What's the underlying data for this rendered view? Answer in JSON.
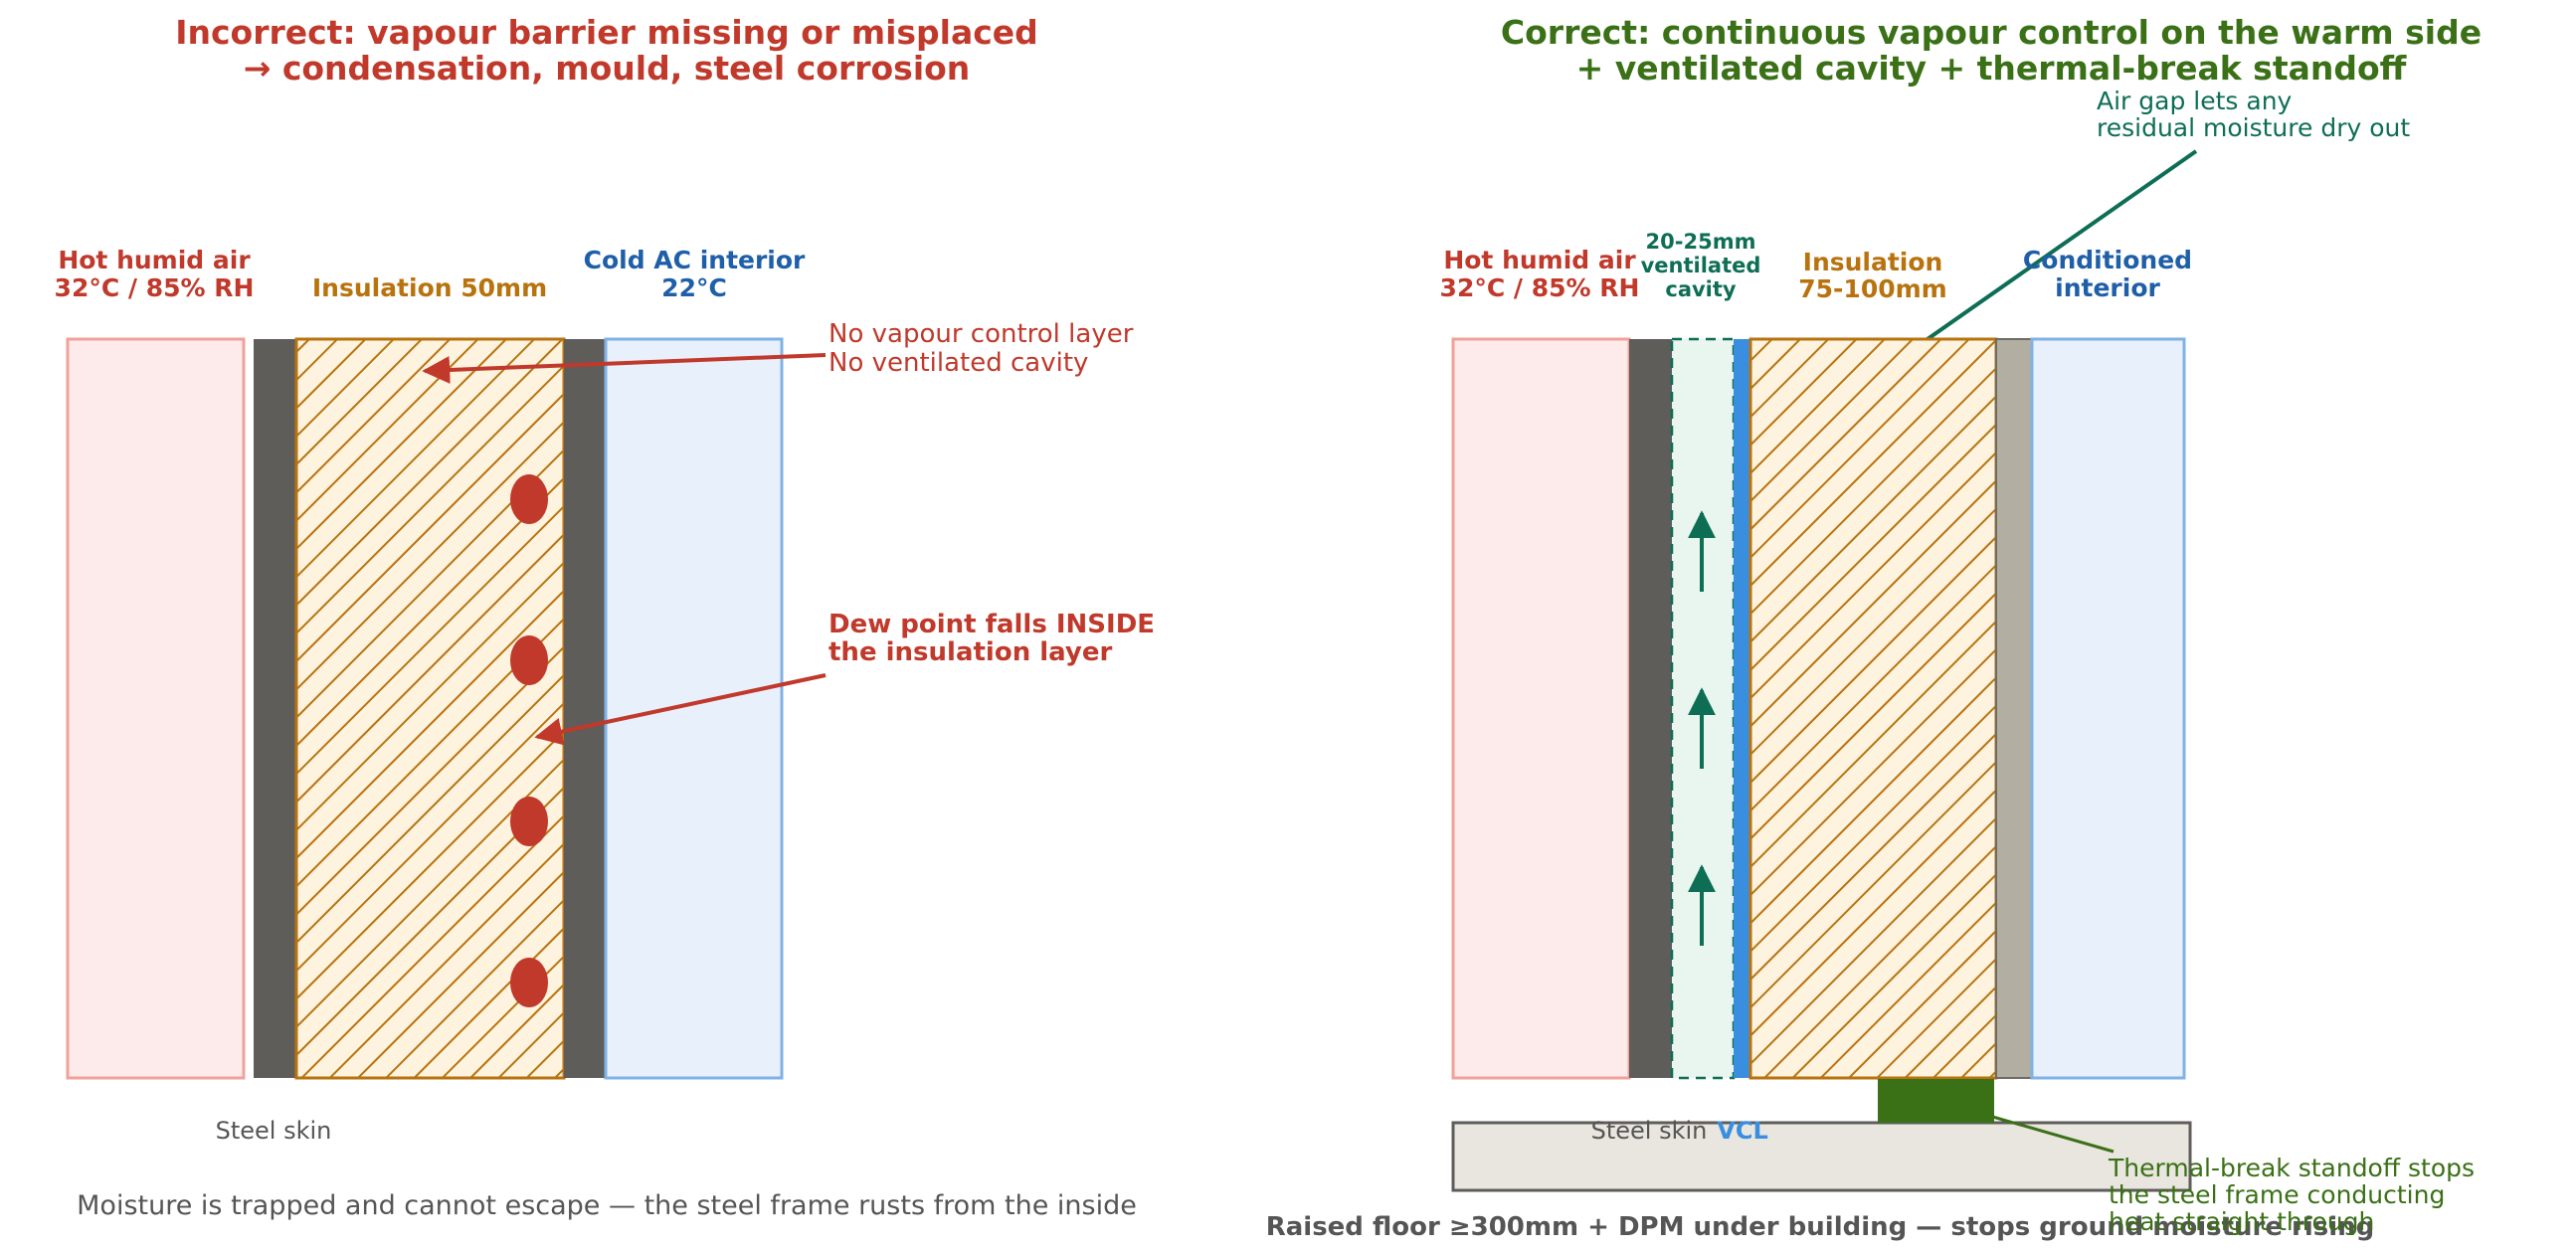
{
  "left_panel": {
    "title_line1": "Incorrect: vapour barrier missing or misplaced",
    "title_line2": "→ condensation, mould, steel corrosion",
    "exterior_label_line1": "Hot humid air",
    "exterior_label_line2": "32°C / 85% RH",
    "insulation_label": "Insulation 50mm",
    "interior_label_line1": "Cold AC interior",
    "interior_label_line2": "22°C",
    "callout_no_layers_line1": "No vapour control layer",
    "callout_no_layers_line2": "No ventilated cavity",
    "callout_dew_line1": "Dew point falls INSIDE",
    "callout_dew_line2": "the insulation layer",
    "steel_skin_label": "Steel skin",
    "footer": "Moisture is trapped and cannot escape — the steel frame rusts from the inside",
    "condensation_droplet_count": 4
  },
  "right_panel": {
    "title_line1": "Correct: continuous vapour control on the warm side",
    "title_line2": "+ ventilated cavity + thermal-break standoff",
    "exterior_label_line1": "Hot humid air",
    "exterior_label_line2": "32°C / 85% RH",
    "cavity_label_line1": "20-25mm",
    "cavity_label_line2": "ventilated",
    "cavity_label_line3": "cavity",
    "insulation_label_line1": "Insulation",
    "insulation_label_line2": "75-100mm",
    "interior_label_line1": "Conditioned",
    "interior_label_line2": "interior",
    "air_gap_note_line1": "Air gap lets any",
    "air_gap_note_line2": "residual moisture dry out",
    "steel_skin_label": "Steel skin",
    "vcl_label": "VCL",
    "standoff_note_line1": "Thermal-break standoff stops",
    "standoff_note_line2": "the steel frame conducting",
    "standoff_note_line3": "heat straight through",
    "footer": "Raised floor ≥300mm + DPM under building — stops ground moisture rising",
    "airflow_arrow_count": 3
  },
  "colors": {
    "incorrect_red": "#c0392b",
    "correct_green": "#3a7016",
    "cavity_teal": "#0e6e55",
    "insulation_amber": "#b8730f",
    "interior_blue": "#1f5fa8",
    "vcl_blue": "#3a8ee0",
    "steel_dark": "#5e5d5a",
    "exterior_fill": "#fdeaea",
    "interior_fill": "#e8f0fb"
  }
}
